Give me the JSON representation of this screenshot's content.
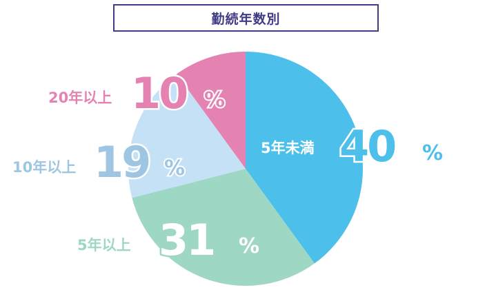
{
  "chart_data": {
    "type": "pie",
    "title": "勤続年数別",
    "slices": [
      {
        "label": "5年未満",
        "value": 40,
        "pct_num": "40",
        "unit": "%",
        "color": "#4cc0ea"
      },
      {
        "label": "5年以上",
        "value": 31,
        "pct_num": "31",
        "unit": "%",
        "color": "#9fd7c5"
      },
      {
        "label": "10年以上",
        "value": 19,
        "pct_num": "19",
        "unit": "%",
        "color": "#c5e1f5"
      },
      {
        "label": "20年以上",
        "value": 10,
        "pct_num": "10",
        "unit": "%",
        "color": "#e483b1"
      }
    ],
    "label_colors": {
      "5年未満": "#ffffff",
      "5年以上": "#9fd7c5",
      "10年以上": "#9ec6e2",
      "20年以上": "#e483b1"
    }
  }
}
